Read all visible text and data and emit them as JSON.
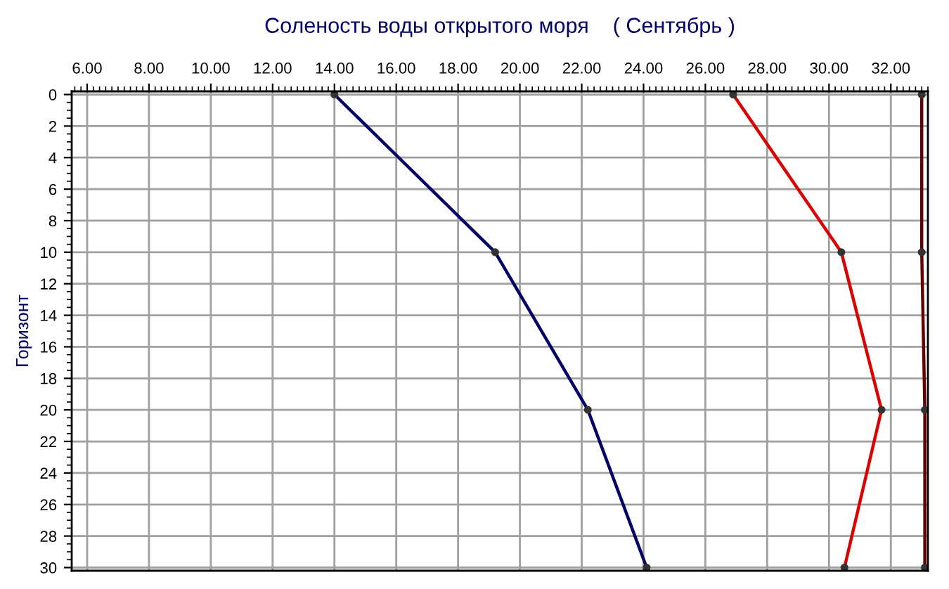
{
  "chart_data": {
    "type": "line",
    "title": "Соленость воды открытого моря    ( Сентябрь )",
    "ylabel": "Горизонт",
    "x": [
      0,
      10,
      20,
      30
    ],
    "series": [
      {
        "color": "#000066",
        "values": [
          14.0,
          19.2,
          22.2,
          24.1
        ]
      },
      {
        "color": "#dd0000",
        "values": [
          26.9,
          30.4,
          31.7,
          30.5
        ]
      },
      {
        "color": "#660000",
        "values": [
          33.0,
          33.0,
          33.1,
          33.1
        ]
      }
    ],
    "orientation": "horizontal",
    "xlim": [
      5.5,
      33.2
    ],
    "xticks": [
      {
        "value": 6,
        "label": "6.00"
      },
      {
        "value": 8,
        "label": "8.00"
      },
      {
        "value": 10,
        "label": "10.00"
      },
      {
        "value": 12,
        "label": "12.00"
      },
      {
        "value": 14,
        "label": "14.00"
      },
      {
        "value": 16,
        "label": "16.00"
      },
      {
        "value": 18,
        "label": "18.00"
      },
      {
        "value": 20,
        "label": "20.00"
      },
      {
        "value": 22,
        "label": "22.00"
      },
      {
        "value": 24,
        "label": "24.00"
      },
      {
        "value": 26,
        "label": "26.00"
      },
      {
        "value": 28,
        "label": "28.00"
      },
      {
        "value": 30,
        "label": "30.00"
      },
      {
        "value": 32,
        "label": "32.00"
      }
    ],
    "ylim": [
      30.2,
      -0.2
    ],
    "yticks": [
      0,
      2,
      4,
      6,
      8,
      10,
      12,
      14,
      16,
      18,
      20,
      22,
      24,
      26,
      28,
      30
    ],
    "grid": true,
    "marker": "circle",
    "line_style": "solid"
  }
}
